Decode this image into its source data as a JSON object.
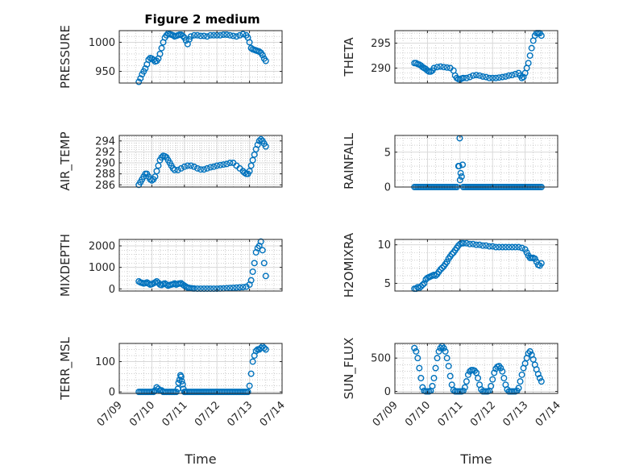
{
  "figure_title": "Figure 2 medium",
  "chart_data": [
    {
      "type": "scatter",
      "ylabel": "PRESSURE",
      "xlabel": "",
      "xlim": [
        "07/09",
        "07/14"
      ],
      "xticks": [
        "07/09",
        "07/10",
        "07/11",
        "07/12",
        "07/13",
        "07/14"
      ],
      "ylim": [
        930,
        1020
      ],
      "yticks": [
        950,
        1000
      ],
      "grid": true,
      "minor_grid": true,
      "marker_color": "#0072bd",
      "x": [
        9.6,
        9.65,
        9.7,
        9.75,
        9.8,
        9.85,
        9.9,
        9.95,
        10.0,
        10.05,
        10.1,
        10.15,
        10.2,
        10.25,
        10.3,
        10.35,
        10.4,
        10.45,
        10.5,
        10.55,
        10.6,
        10.65,
        10.7,
        10.75,
        10.8,
        10.85,
        10.9,
        10.95,
        11.0,
        11.05,
        11.1,
        11.15,
        11.2,
        11.3,
        11.4,
        11.5,
        11.6,
        11.7,
        11.8,
        11.9,
        12.0,
        12.1,
        12.2,
        12.3,
        12.4,
        12.5,
        12.6,
        12.7,
        12.8,
        12.9,
        12.95,
        13.0,
        13.05,
        13.1,
        13.15,
        13.2,
        13.25,
        13.3,
        13.35,
        13.4,
        13.45,
        13.5
      ],
      "y": [
        932,
        938,
        945,
        950,
        955,
        962,
        970,
        973,
        972,
        970,
        967,
        968,
        972,
        980,
        990,
        1000,
        1008,
        1012,
        1015,
        1014,
        1013,
        1012,
        1010,
        1011,
        1012,
        1013,
        1013,
        1011,
        1008,
        1003,
        997,
        1005,
        1010,
        1012,
        1012,
        1011,
        1011,
        1010,
        1012,
        1012,
        1012,
        1012,
        1013,
        1013,
        1012,
        1011,
        1010,
        1012,
        1014,
        1012,
        1008,
        1000,
        990,
        988,
        987,
        986,
        985,
        984,
        982,
        978,
        972,
        968
      ]
    },
    {
      "type": "scatter",
      "ylabel": "THETA",
      "xlabel": "",
      "xlim": [
        "07/09",
        "07/14"
      ],
      "xticks": [
        "07/09",
        "07/10",
        "07/11",
        "07/12",
        "07/13",
        "07/14"
      ],
      "ylim": [
        287,
        297.5
      ],
      "yticks": [
        290,
        295
      ],
      "grid": true,
      "minor_grid": true,
      "marker_color": "#0072bd",
      "x": [
        9.6,
        9.65,
        9.7,
        9.75,
        9.8,
        9.85,
        9.9,
        9.95,
        10.0,
        10.05,
        10.1,
        10.15,
        10.2,
        10.3,
        10.4,
        10.5,
        10.6,
        10.7,
        10.8,
        10.85,
        10.9,
        10.95,
        11.0,
        11.05,
        11.1,
        11.2,
        11.3,
        11.4,
        11.5,
        11.6,
        11.7,
        11.8,
        11.9,
        12.0,
        12.1,
        12.2,
        12.3,
        12.4,
        12.5,
        12.6,
        12.7,
        12.8,
        12.85,
        12.9,
        12.95,
        13.0,
        13.05,
        13.1,
        13.15,
        13.2,
        13.25,
        13.3,
        13.35,
        13.4,
        13.45,
        13.5
      ],
      "y": [
        291,
        291,
        290.8,
        290.7,
        290.5,
        290.2,
        290,
        289.8,
        289.5,
        289.3,
        289.3,
        289.5,
        290,
        290.2,
        290.3,
        290.2,
        290.1,
        290.0,
        289.5,
        288.5,
        288.0,
        287.8,
        287.7,
        287.9,
        288.0,
        288.0,
        288.2,
        288.5,
        288.6,
        288.5,
        288.3,
        288.2,
        288.0,
        288.0,
        288.0,
        288.1,
        288.2,
        288.3,
        288.5,
        288.6,
        288.8,
        289.0,
        288.5,
        288.0,
        288.2,
        289.0,
        290.0,
        291.0,
        292.5,
        294.0,
        295.5,
        296.5,
        297.0,
        297.0,
        297.0,
        296.5
      ]
    },
    {
      "type": "scatter",
      "ylabel": "AIR_TEMP",
      "xlabel": "",
      "xlim": [
        "07/09",
        "07/14"
      ],
      "xticks": [
        "07/09",
        "07/10",
        "07/11",
        "07/12",
        "07/13",
        "07/14"
      ],
      "ylim": [
        285.6,
        295
      ],
      "yticks": [
        286,
        288,
        290,
        292,
        294
      ],
      "grid": true,
      "minor_grid": true,
      "marker_color": "#0072bd",
      "x": [
        9.6,
        9.65,
        9.7,
        9.75,
        9.8,
        9.85,
        9.9,
        9.95,
        10.0,
        10.05,
        10.1,
        10.15,
        10.2,
        10.25,
        10.3,
        10.35,
        10.4,
        10.45,
        10.5,
        10.55,
        10.6,
        10.65,
        10.7,
        10.8,
        10.9,
        11.0,
        11.1,
        11.2,
        11.3,
        11.4,
        11.5,
        11.6,
        11.7,
        11.8,
        11.9,
        12.0,
        12.1,
        12.2,
        12.3,
        12.4,
        12.5,
        12.6,
        12.7,
        12.8,
        12.85,
        12.9,
        12.95,
        13.0,
        13.05,
        13.1,
        13.15,
        13.2,
        13.25,
        13.3,
        13.35,
        13.4,
        13.45,
        13.5
      ],
      "y": [
        286.0,
        286.5,
        287.0,
        287.5,
        288.0,
        288.0,
        287.5,
        287.0,
        286.8,
        287.0,
        287.5,
        288.5,
        289.5,
        290.5,
        291.0,
        291.3,
        291.2,
        291.0,
        290.5,
        290.0,
        289.5,
        289.0,
        288.7,
        288.7,
        289.0,
        289.3,
        289.5,
        289.5,
        289.3,
        289.0,
        288.8,
        288.8,
        289.0,
        289.2,
        289.3,
        289.5,
        289.6,
        289.7,
        289.8,
        290.0,
        290.0,
        289.5,
        289.0,
        288.5,
        288.2,
        288.0,
        288.0,
        288.5,
        289.5,
        290.5,
        291.5,
        292.5,
        293.3,
        294.0,
        294.3,
        294.0,
        293.5,
        293.0
      ]
    },
    {
      "type": "scatter",
      "ylabel": "RAINFALL",
      "xlabel": "",
      "xlim": [
        "07/09",
        "07/14"
      ],
      "xticks": [
        "07/09",
        "07/10",
        "07/11",
        "07/12",
        "07/13",
        "07/14"
      ],
      "ylim": [
        0,
        7.4
      ],
      "yticks": [
        0,
        5
      ],
      "grid": true,
      "minor_grid": true,
      "marker_color": "#0072bd",
      "x": [
        9.6,
        9.65,
        9.7,
        9.75,
        9.8,
        9.85,
        9.9,
        9.95,
        10.0,
        10.05,
        10.1,
        10.15,
        10.2,
        10.25,
        10.3,
        10.35,
        10.4,
        10.45,
        10.5,
        10.55,
        10.6,
        10.65,
        10.7,
        10.75,
        10.8,
        10.85,
        10.9,
        10.95,
        10.97,
        10.99,
        11.0,
        11.02,
        11.05,
        11.08,
        11.1,
        11.15,
        11.2,
        11.25,
        11.3,
        11.35,
        11.4,
        11.45,
        11.5,
        11.55,
        11.6,
        11.65,
        11.7,
        11.75,
        11.8,
        11.85,
        11.9,
        11.95,
        12.0,
        12.05,
        12.1,
        12.15,
        12.2,
        12.25,
        12.3,
        12.35,
        12.4,
        12.45,
        12.5,
        12.55,
        12.6,
        12.65,
        12.7,
        12.75,
        12.8,
        12.85,
        12.9,
        12.95,
        13.0,
        13.05,
        13.1,
        13.15,
        13.2,
        13.25,
        13.3,
        13.35,
        13.4,
        13.45,
        13.5
      ],
      "y": [
        0,
        0,
        0,
        0,
        0,
        0,
        0,
        0,
        0,
        0,
        0,
        0,
        0,
        0,
        0,
        0,
        0,
        0,
        0,
        0,
        0,
        0,
        0,
        0,
        0,
        0,
        0,
        3.0,
        3.0,
        7.0,
        1.0,
        2.0,
        1.5,
        3.2,
        0,
        0,
        0,
        0,
        0,
        0,
        0,
        0,
        0,
        0,
        0,
        0,
        0,
        0,
        0,
        0,
        0,
        0,
        0,
        0,
        0,
        0,
        0,
        0,
        0,
        0,
        0,
        0,
        0,
        0,
        0,
        0,
        0,
        0,
        0,
        0,
        0,
        0,
        0,
        0,
        0,
        0,
        0,
        0,
        0,
        0,
        0,
        0,
        0
      ]
    },
    {
      "type": "scatter",
      "ylabel": "MIXDEPTH",
      "xlabel": "",
      "xlim": [
        "07/09",
        "07/14"
      ],
      "xticks": [
        "07/09",
        "07/10",
        "07/11",
        "07/12",
        "07/13",
        "07/14"
      ],
      "ylim": [
        -100,
        2300
      ],
      "yticks": [
        0,
        1000,
        2000
      ],
      "grid": true,
      "minor_grid": true,
      "marker_color": "#0072bd",
      "x": [
        9.6,
        9.65,
        9.7,
        9.75,
        9.8,
        9.85,
        9.9,
        9.95,
        10.0,
        10.05,
        10.1,
        10.15,
        10.2,
        10.25,
        10.3,
        10.35,
        10.4,
        10.45,
        10.5,
        10.55,
        10.6,
        10.65,
        10.7,
        10.75,
        10.8,
        10.85,
        10.9,
        10.95,
        11.0,
        11.05,
        11.1,
        11.15,
        11.2,
        11.25,
        11.3,
        11.4,
        11.5,
        11.6,
        11.7,
        11.8,
        11.9,
        12.0,
        12.1,
        12.2,
        12.3,
        12.4,
        12.5,
        12.6,
        12.7,
        12.8,
        12.9,
        13.0,
        13.05,
        13.1,
        13.15,
        13.2,
        13.25,
        13.3,
        13.35,
        13.4,
        13.45,
        13.5
      ],
      "y": [
        350,
        300,
        280,
        250,
        270,
        300,
        250,
        200,
        220,
        260,
        300,
        350,
        280,
        200,
        180,
        230,
        250,
        200,
        150,
        180,
        200,
        220,
        250,
        200,
        230,
        250,
        260,
        200,
        150,
        100,
        60,
        40,
        30,
        20,
        15,
        10,
        10,
        10,
        10,
        10,
        10,
        10,
        15,
        20,
        30,
        40,
        50,
        60,
        70,
        80,
        100,
        200,
        400,
        800,
        1200,
        1700,
        1900,
        2000,
        2200,
        1800,
        1200,
        600
      ]
    },
    {
      "type": "scatter",
      "ylabel": "H2OMIXRA",
      "xlabel": "",
      "xlim": [
        "07/09",
        "07/14"
      ],
      "xticks": [
        "07/09",
        "07/10",
        "07/11",
        "07/12",
        "07/13",
        "07/14"
      ],
      "ylim": [
        4,
        10.7
      ],
      "yticks": [
        5,
        10
      ],
      "grid": true,
      "minor_grid": true,
      "marker_color": "#0072bd",
      "x": [
        9.6,
        9.65,
        9.7,
        9.75,
        9.8,
        9.85,
        9.9,
        9.95,
        10.0,
        10.05,
        10.1,
        10.15,
        10.2,
        10.25,
        10.3,
        10.35,
        10.4,
        10.45,
        10.5,
        10.55,
        10.6,
        10.65,
        10.7,
        10.75,
        10.8,
        10.85,
        10.9,
        10.95,
        11.0,
        11.05,
        11.1,
        11.2,
        11.3,
        11.4,
        11.5,
        11.6,
        11.7,
        11.8,
        11.9,
        12.0,
        12.1,
        12.2,
        12.3,
        12.4,
        12.5,
        12.6,
        12.7,
        12.8,
        12.9,
        13.0,
        13.05,
        13.1,
        13.15,
        13.2,
        13.25,
        13.3,
        13.35,
        13.4,
        13.45,
        13.5
      ],
      "y": [
        4.3,
        4.3,
        4.5,
        4.4,
        4.6,
        4.8,
        5.0,
        5.5,
        5.7,
        5.8,
        5.9,
        6.0,
        6.1,
        6.0,
        6.2,
        6.5,
        6.8,
        7.0,
        7.2,
        7.5,
        7.8,
        8.2,
        8.5,
        8.8,
        9.0,
        9.3,
        9.6,
        9.9,
        10.1,
        10.2,
        10.2,
        10.2,
        10.1,
        10.1,
        10.0,
        10.0,
        9.9,
        9.9,
        9.8,
        9.8,
        9.7,
        9.7,
        9.7,
        9.7,
        9.7,
        9.7,
        9.7,
        9.7,
        9.6,
        9.4,
        9.0,
        8.6,
        8.3,
        8.3,
        8.3,
        8.2,
        7.8,
        7.4,
        7.3,
        7.6
      ]
    },
    {
      "type": "scatter",
      "ylabel": "TERR_MSL",
      "xlabel": "Time",
      "xlim": [
        "07/09",
        "07/14"
      ],
      "xticks": [
        "07/09",
        "07/10",
        "07/11",
        "07/12",
        "07/13",
        "07/14"
      ],
      "ylim": [
        -5,
        160
      ],
      "yticks": [
        0,
        100
      ],
      "grid": true,
      "minor_grid": true,
      "marker_color": "#0072bd",
      "x": [
        9.6,
        9.65,
        9.7,
        9.75,
        9.8,
        9.85,
        9.9,
        9.95,
        10.0,
        10.05,
        10.1,
        10.15,
        10.2,
        10.25,
        10.3,
        10.35,
        10.4,
        10.45,
        10.5,
        10.55,
        10.6,
        10.65,
        10.7,
        10.75,
        10.8,
        10.82,
        10.85,
        10.88,
        10.9,
        10.92,
        10.95,
        10.97,
        11.0,
        11.02,
        11.05,
        11.1,
        11.15,
        11.2,
        11.25,
        11.3,
        11.35,
        11.4,
        11.45,
        11.5,
        11.55,
        11.6,
        11.65,
        11.7,
        11.75,
        11.8,
        11.85,
        11.9,
        11.95,
        12.0,
        12.05,
        12.1,
        12.15,
        12.2,
        12.25,
        12.3,
        12.35,
        12.4,
        12.45,
        12.5,
        12.55,
        12.6,
        12.65,
        12.7,
        12.75,
        12.8,
        12.85,
        12.9,
        12.95,
        13.0,
        13.05,
        13.1,
        13.15,
        13.2,
        13.25,
        13.3,
        13.35,
        13.4,
        13.45,
        13.5
      ],
      "y": [
        0,
        0,
        0,
        0,
        0,
        0,
        0,
        0,
        0,
        0,
        5,
        15,
        10,
        5,
        5,
        0,
        0,
        0,
        0,
        0,
        0,
        0,
        0,
        0,
        10,
        30,
        40,
        55,
        50,
        35,
        25,
        10,
        0,
        0,
        0,
        0,
        0,
        0,
        0,
        0,
        0,
        0,
        0,
        0,
        0,
        0,
        0,
        0,
        0,
        0,
        0,
        0,
        0,
        0,
        0,
        0,
        0,
        0,
        0,
        0,
        0,
        0,
        0,
        0,
        0,
        0,
        0,
        0,
        0,
        0,
        0,
        0,
        0,
        20,
        60,
        100,
        120,
        135,
        140,
        140,
        145,
        150,
        145,
        140
      ]
    },
    {
      "type": "scatter",
      "ylabel": "SUN_FLUX",
      "xlabel": "Time",
      "xlim": [
        "07/09",
        "07/14"
      ],
      "xticks": [
        "07/09",
        "07/10",
        "07/11",
        "07/12",
        "07/13",
        "07/14"
      ],
      "ylim": [
        -30,
        720
      ],
      "yticks": [
        0,
        500
      ],
      "grid": true,
      "minor_grid": true,
      "marker_color": "#0072bd",
      "x": [
        9.6,
        9.65,
        9.7,
        9.75,
        9.8,
        9.85,
        9.9,
        9.95,
        10.0,
        10.05,
        10.1,
        10.15,
        10.2,
        10.25,
        10.3,
        10.35,
        10.4,
        10.45,
        10.5,
        10.55,
        10.6,
        10.65,
        10.7,
        10.75,
        10.8,
        10.85,
        10.9,
        10.95,
        11.0,
        11.05,
        11.1,
        11.15,
        11.2,
        11.25,
        11.3,
        11.35,
        11.4,
        11.45,
        11.5,
        11.55,
        11.6,
        11.65,
        11.7,
        11.75,
        11.8,
        11.85,
        11.9,
        11.95,
        12.0,
        12.05,
        12.1,
        12.15,
        12.2,
        12.25,
        12.3,
        12.35,
        12.4,
        12.45,
        12.5,
        12.55,
        12.6,
        12.65,
        12.7,
        12.75,
        12.8,
        12.85,
        12.9,
        12.95,
        13.0,
        13.05,
        13.1,
        13.15,
        13.2,
        13.25,
        13.3,
        13.35,
        13.4,
        13.45,
        13.5
      ],
      "y": [
        650,
        600,
        500,
        350,
        200,
        60,
        10,
        0,
        0,
        0,
        10,
        80,
        200,
        350,
        500,
        600,
        650,
        680,
        650,
        600,
        500,
        380,
        230,
        100,
        20,
        0,
        0,
        0,
        0,
        0,
        10,
        60,
        150,
        250,
        300,
        320,
        320,
        310,
        280,
        200,
        100,
        30,
        0,
        0,
        0,
        0,
        10,
        80,
        180,
        280,
        340,
        370,
        380,
        350,
        300,
        200,
        100,
        30,
        0,
        0,
        0,
        0,
        0,
        10,
        50,
        150,
        250,
        350,
        420,
        500,
        570,
        600,
        550,
        480,
        400,
        330,
        260,
        200,
        150
      ]
    }
  ]
}
